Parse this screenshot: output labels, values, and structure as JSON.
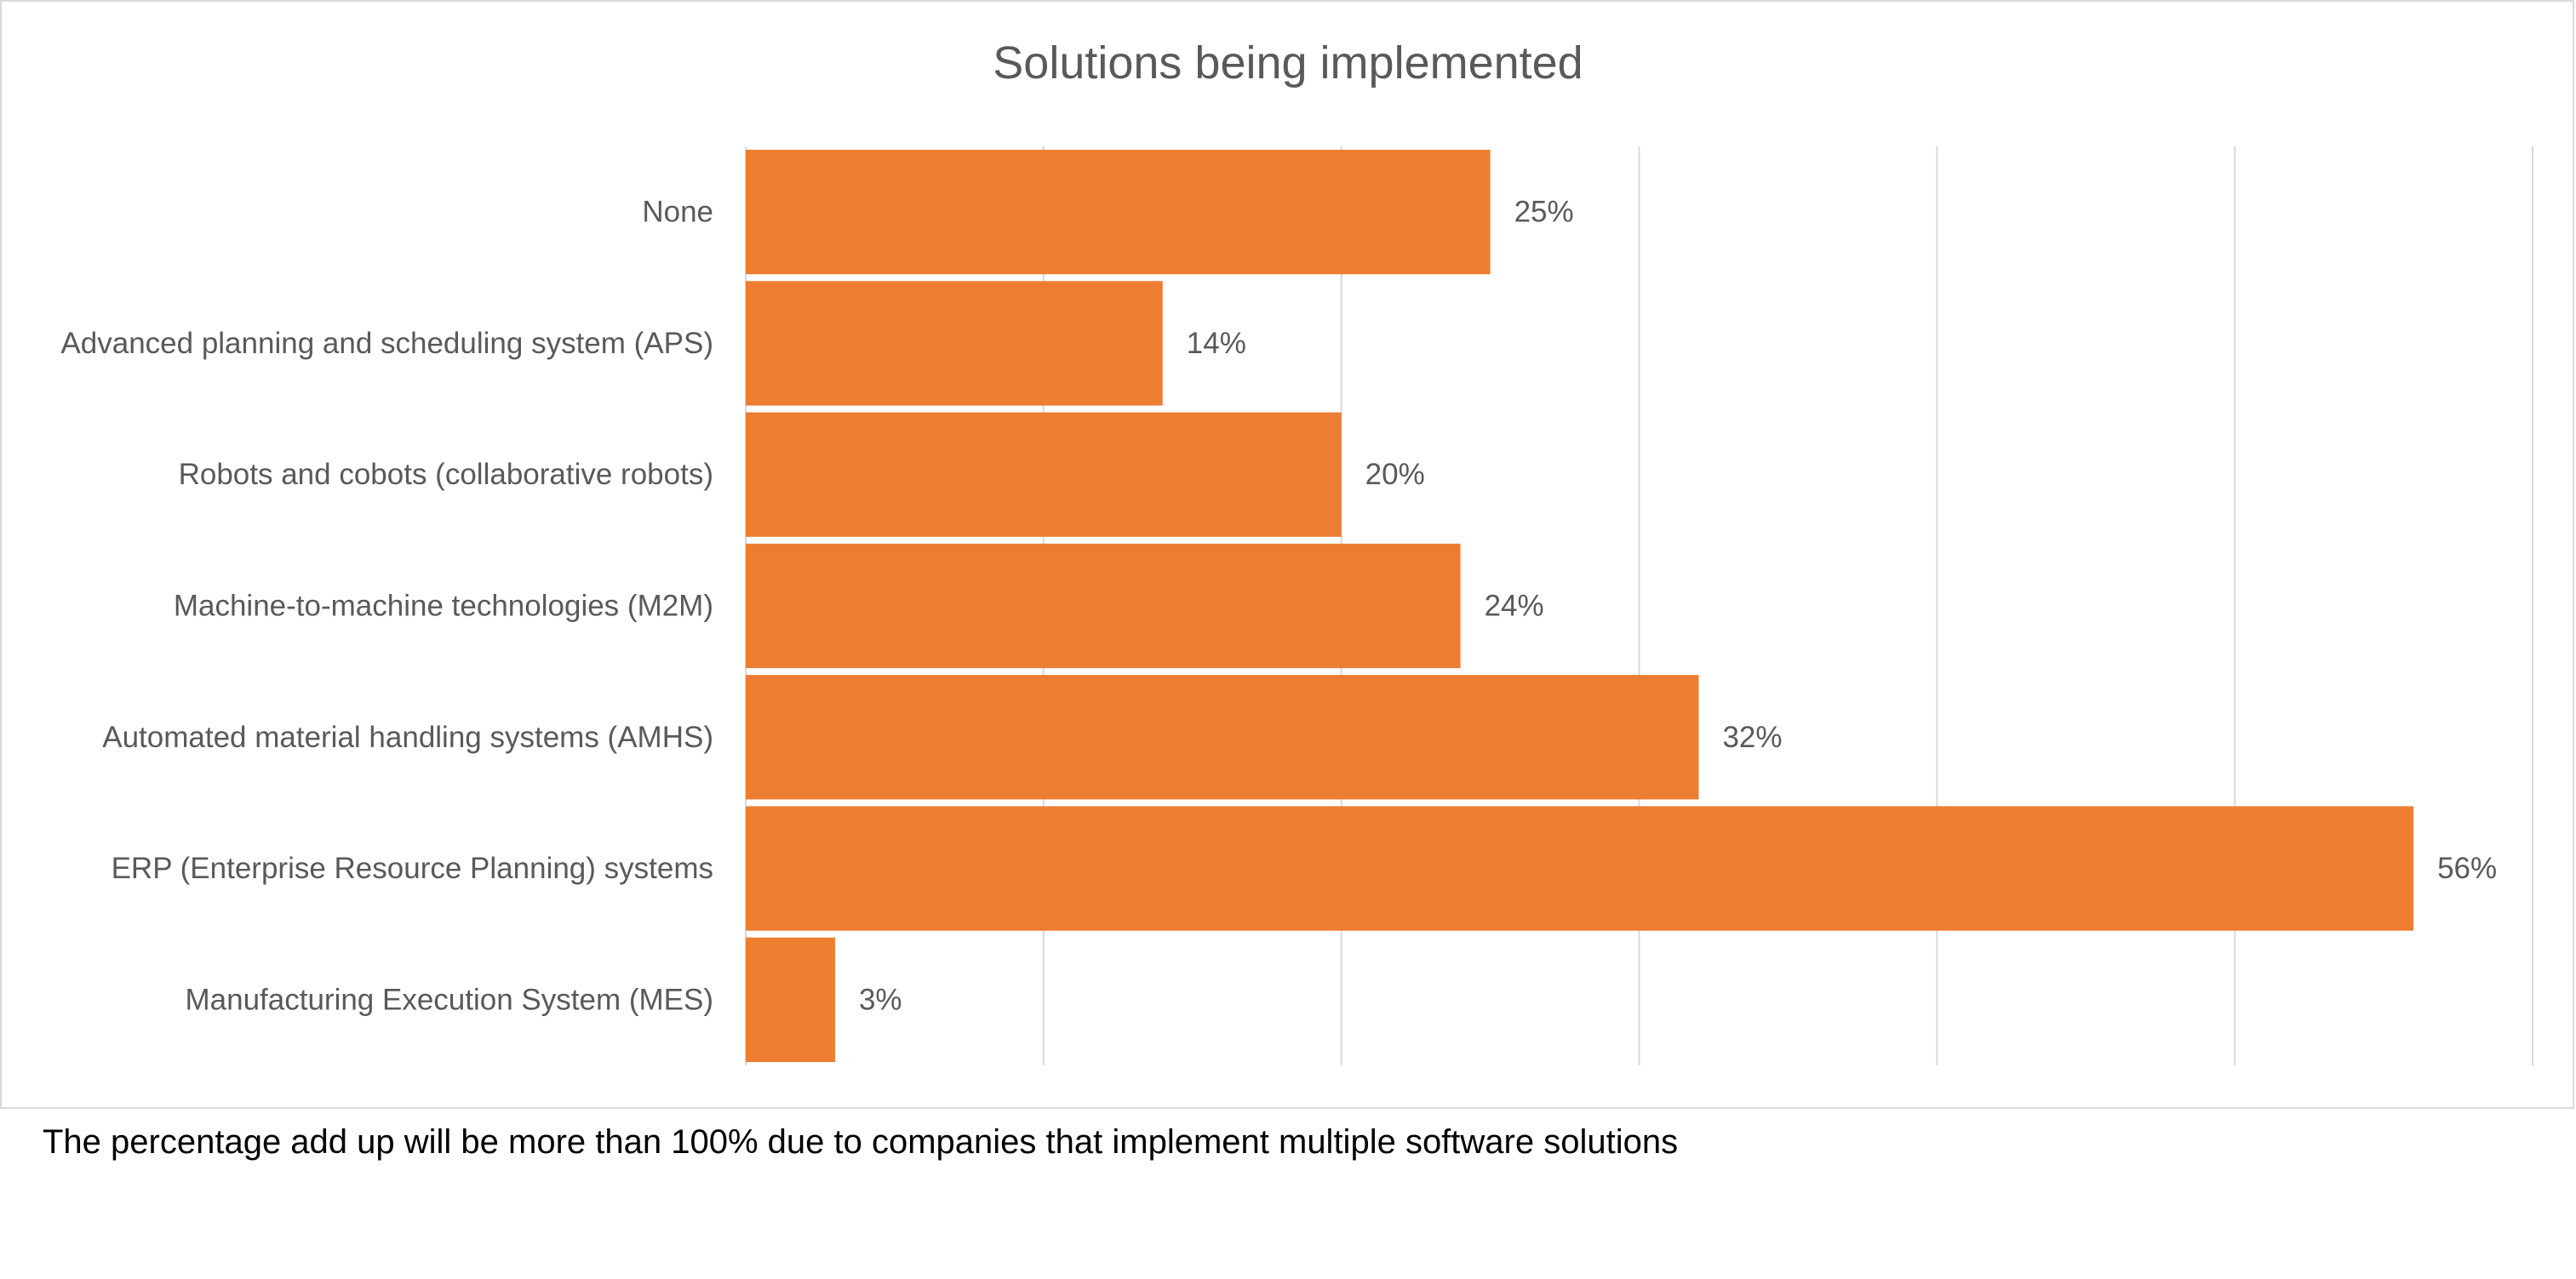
{
  "chart_data": {
    "type": "bar",
    "orientation": "horizontal",
    "title": "Solutions being implemented",
    "xlabel": "",
    "ylabel": "",
    "categories": [
      "None",
      "Advanced planning and scheduling system (APS)",
      "Robots and cobots (collaborative robots)",
      "Machine-to-machine technologies (M2M)",
      "Automated material handling systems (AMHS)",
      "ERP (Enterprise Resource Planning) systems",
      "Manufacturing Execution System (MES)"
    ],
    "values": [
      25,
      14,
      20,
      24,
      32,
      56,
      3
    ],
    "data_labels": [
      "25%",
      "14%",
      "20%",
      "24%",
      "32%",
      "56%",
      "3%"
    ],
    "xlim": [
      0,
      60
    ],
    "x_gridline_step": 10,
    "x_tick_labels_shown": false,
    "grid": "vertical",
    "legend": "none",
    "colors": {
      "bar": "#ED7D31",
      "text": "#595959",
      "gridline": "#d9d9d9",
      "frame": "#d9d9d9"
    }
  },
  "footnote": "The percentage add up will be more than 100% due to companies that implement multiple software solutions"
}
